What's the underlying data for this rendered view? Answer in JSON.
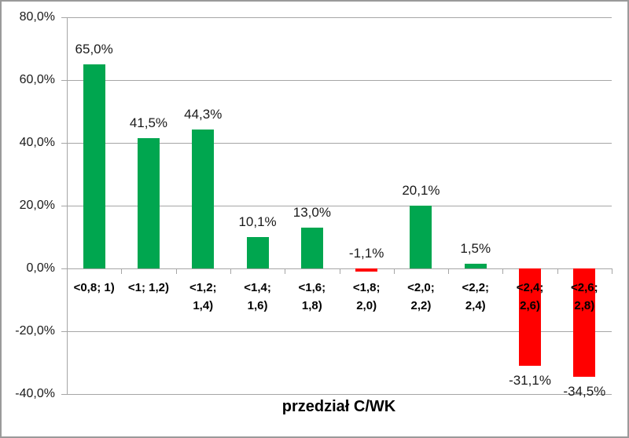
{
  "chart_data": {
    "type": "bar",
    "title": "",
    "xlabel": "przedział C/WK",
    "ylabel": "",
    "ylim": [
      -40,
      80
    ],
    "ytick_step": 20,
    "ytick_labels": [
      "80,0%",
      "60,0%",
      "40,0%",
      "20,0%",
      "0,0%",
      "-20,0%",
      "-40,0%"
    ],
    "categories": [
      "<0,8; 1)",
      "<1; 1,2)",
      "<1,2; 1,4)",
      "<1,4; 1,6)",
      "<1,6; 1,8)",
      "<1,8; 2,0)",
      "<2,0; 2,2)",
      "<2,2; 2,4)",
      "<2,4; 2,6)",
      "<2,6; 2,8)"
    ],
    "category_label_lines": [
      [
        "<0,8; 1)"
      ],
      [
        "<1; 1,2)"
      ],
      [
        "<1,2;",
        "1,4)"
      ],
      [
        "<1,4;",
        "1,6)"
      ],
      [
        "<1,6;",
        "1,8)"
      ],
      [
        "<1,8;",
        "2,0)"
      ],
      [
        "<2,0;",
        "2,2)"
      ],
      [
        "<2,2;",
        "2,4)"
      ],
      [
        "<2,4;",
        "2,6)"
      ],
      [
        "<2,6;",
        "2,8)"
      ]
    ],
    "values": [
      65.0,
      41.5,
      44.3,
      10.1,
      13.0,
      -1.1,
      20.1,
      1.5,
      -31.1,
      -34.5
    ],
    "value_labels": [
      "65,0%",
      "41,5%",
      "44,3%",
      "10,1%",
      "13,0%",
      "-1,1%",
      "20,1%",
      "1,5%",
      "-31,1%",
      "-34,5%"
    ],
    "colors": {
      "positive": "#00A64F",
      "negative": "#FF0000"
    },
    "grid": true,
    "legend": false,
    "legend_position": "none"
  }
}
